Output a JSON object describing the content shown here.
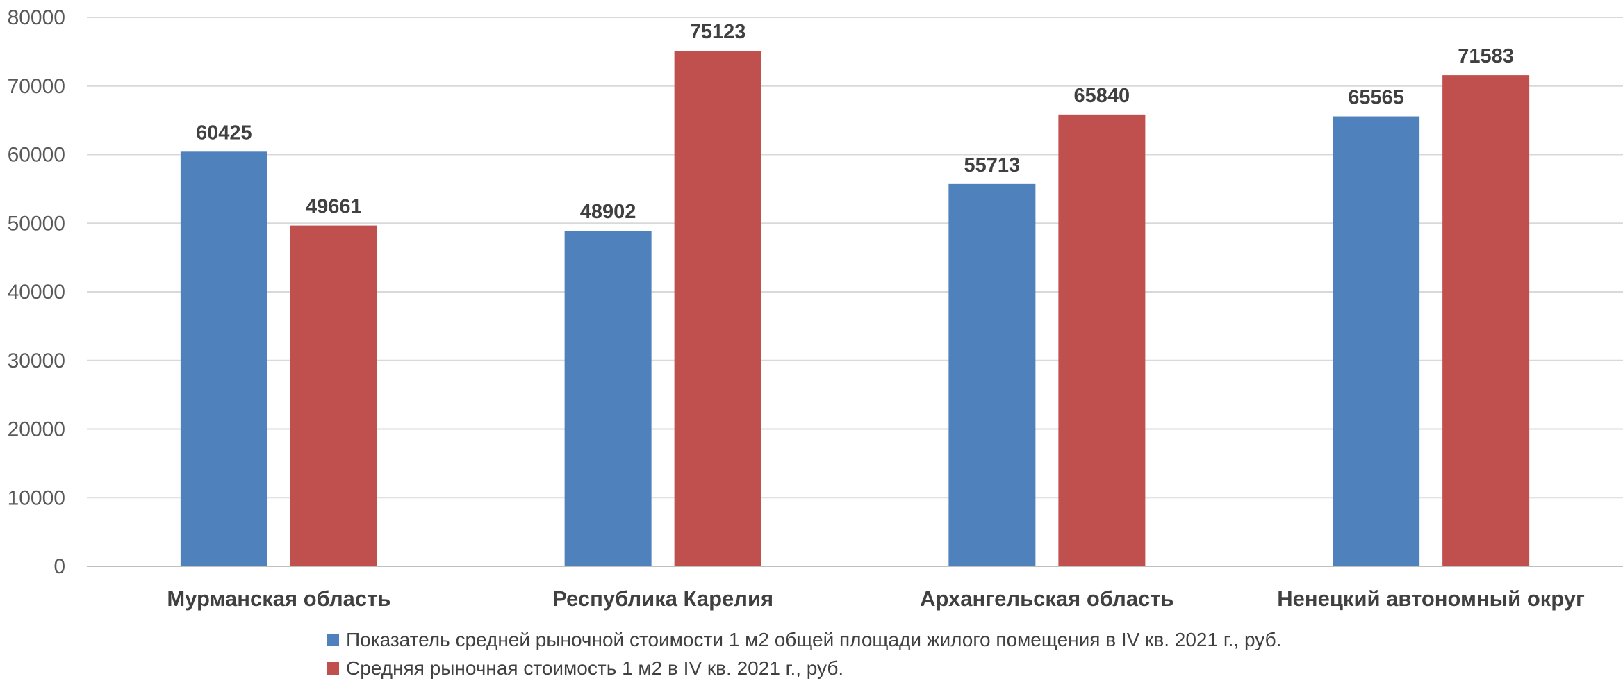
{
  "chart_data": {
    "type": "bar",
    "categories": [
      "Мурманская область",
      "Республика Карелия",
      "Архангельская область",
      "Ненецкий автономный округ"
    ],
    "series": [
      {
        "name": "Показатель средней рыночной стоимости 1 м2  общей площади жилого помещения в IV кв. 2021 г., руб.",
        "values": [
          60425,
          48902,
          55713,
          65565
        ],
        "color": "#4F81BD"
      },
      {
        "name": "Средняя рыночная стоимость 1 м2 в IV кв. 2021 г., руб.",
        "values": [
          49661,
          75123,
          65840,
          71583
        ],
        "color": "#C0504D"
      }
    ],
    "ylim": [
      0,
      80000
    ],
    "yticks": [
      0,
      10000,
      20000,
      30000,
      40000,
      50000,
      60000,
      70000,
      80000
    ],
    "grid": true,
    "legend_position": "bottom",
    "data_labels": true
  }
}
